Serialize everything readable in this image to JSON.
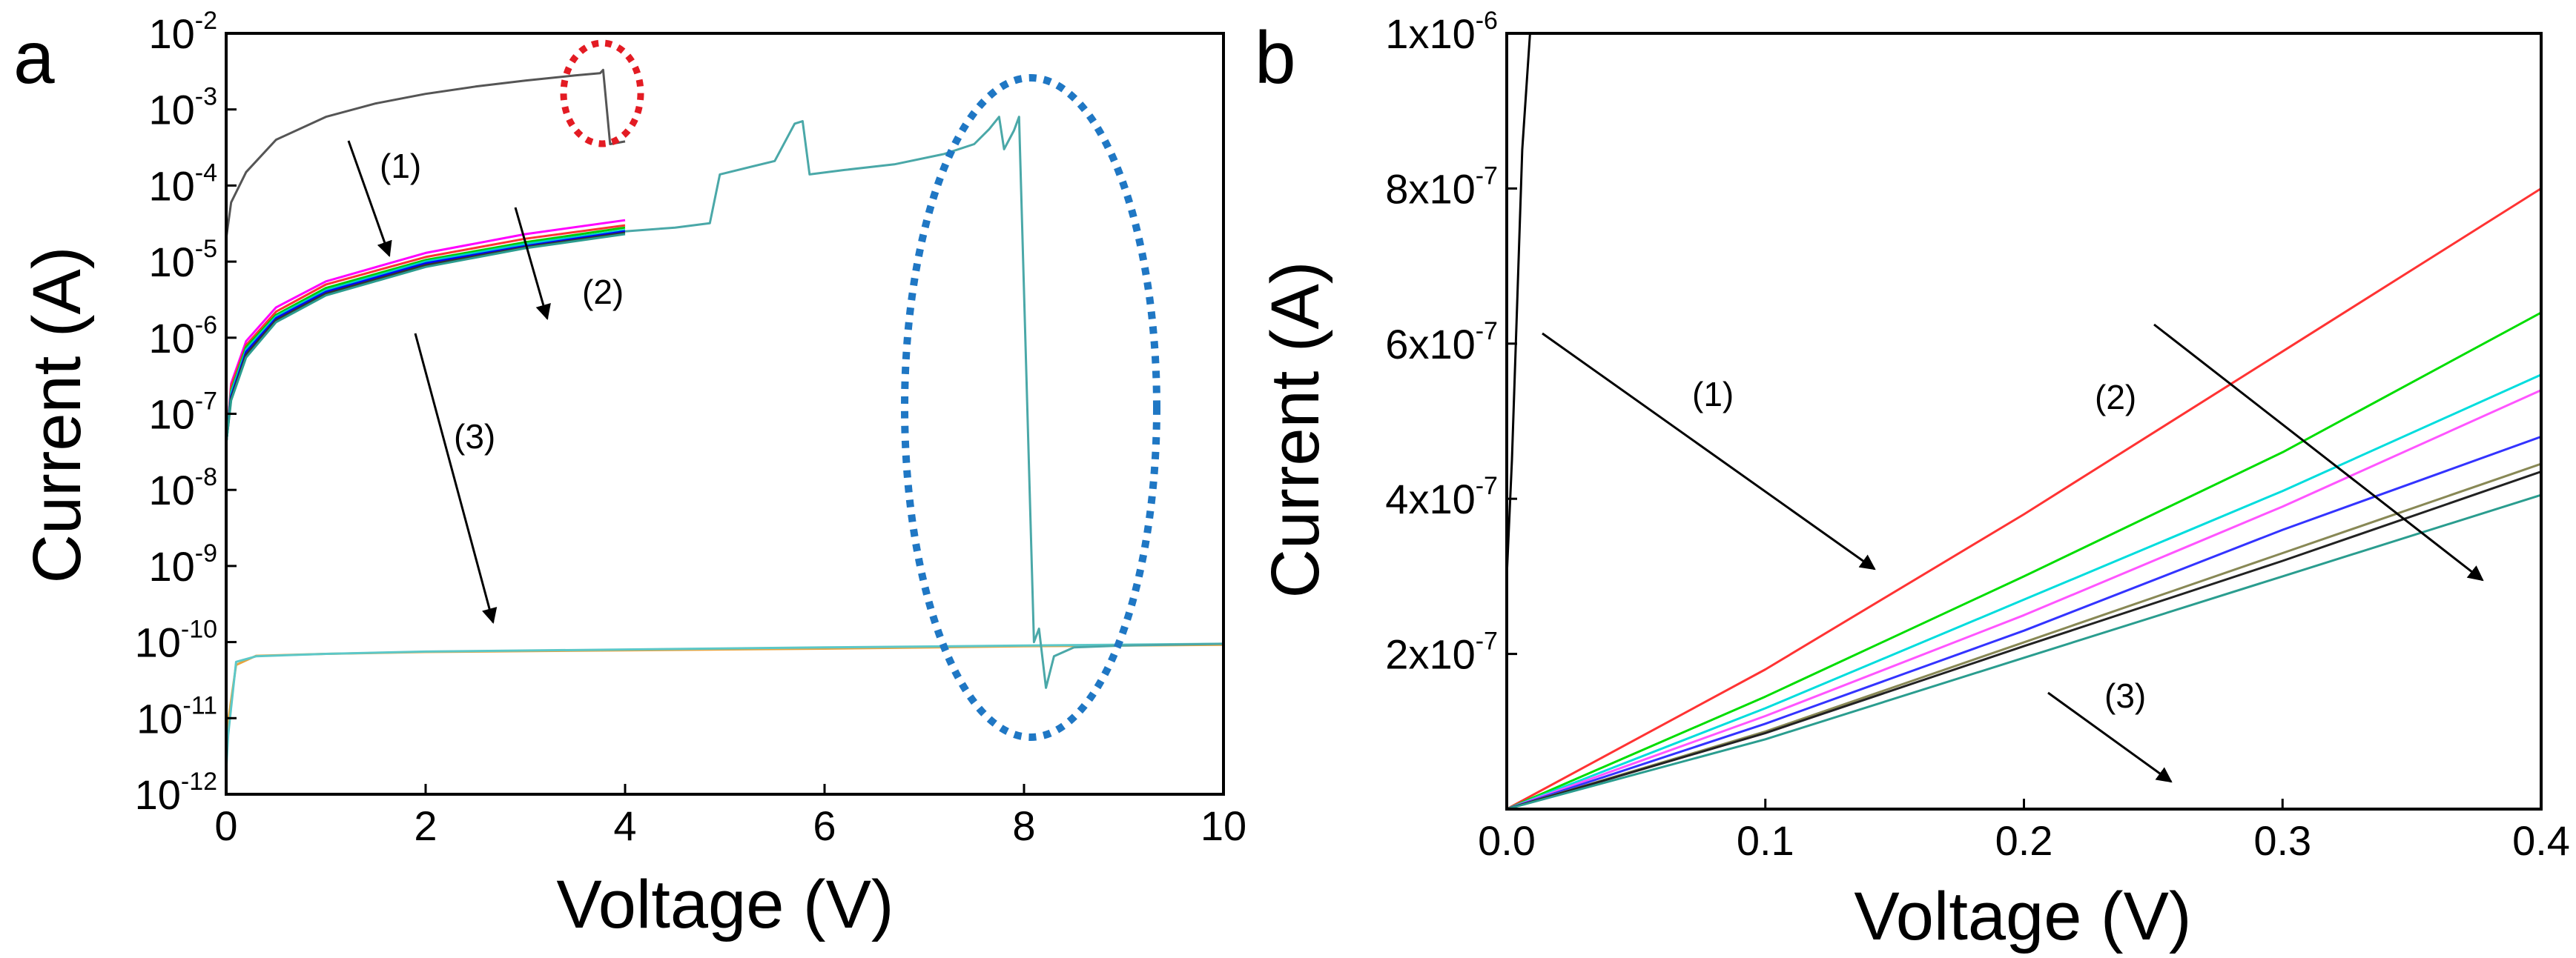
{
  "chart_data": [
    {
      "panel": "a",
      "type": "line",
      "xlabel": "Voltage (V)",
      "ylabel": "Current (A)",
      "xlim": [
        0,
        10
      ],
      "ylim": [
        1e-12,
        0.01
      ],
      "yscale": "log",
      "xticks": [
        "0",
        "2",
        "4",
        "6",
        "8",
        "10"
      ],
      "yticks": [
        {
          "base": "10",
          "exp": "-2",
          "value": 0.01
        },
        {
          "base": "10",
          "exp": "-3",
          "value": 0.001
        },
        {
          "base": "10",
          "exp": "-4",
          "value": 0.0001
        },
        {
          "base": "10",
          "exp": "-5",
          "value": 1e-05
        },
        {
          "base": "10",
          "exp": "-6",
          "value": 1e-06
        },
        {
          "base": "10",
          "exp": "-7",
          "value": 1e-07
        },
        {
          "base": "10",
          "exp": "-8",
          "value": 1e-08
        },
        {
          "base": "10",
          "exp": "-9",
          "value": 1e-09
        },
        {
          "base": "10",
          "exp": "-10",
          "value": 1e-10
        },
        {
          "base": "10",
          "exp": "-11",
          "value": 1e-11
        },
        {
          "base": "10",
          "exp": "-12",
          "value": 1e-12
        }
      ],
      "grid": false,
      "series": [
        {
          "color": "#555555",
          "x": [
            0.0,
            0.05,
            0.2,
            0.5,
            1.0,
            1.5,
            2.0,
            2.5,
            3.0,
            3.5,
            3.75,
            3.78,
            3.85,
            4.0
          ],
          "y": [
            2e-05,
            6e-05,
            0.00015,
            0.0004,
            0.0008,
            0.0012,
            0.0016,
            0.002,
            0.0024,
            0.0028,
            0.003,
            0.0033,
            0.00035,
            0.00038
          ]
        },
        {
          "color": "#ff00ff",
          "x": [
            0.0,
            0.05,
            0.2,
            0.5,
            1.0,
            2.0,
            3.0,
            4.0
          ],
          "y": [
            4e-08,
            2.5e-07,
            9e-07,
            2.5e-06,
            5.5e-06,
            1.3e-05,
            2.3e-05,
            3.5e-05
          ]
        },
        {
          "color": "#ff3333",
          "x": [
            0.0,
            0.05,
            0.2,
            0.5,
            1.0,
            2.0,
            3.0,
            4.0
          ],
          "y": [
            4e-08,
            2.3e-07,
            8e-07,
            2.2e-06,
            5e-06,
            1.15e-05,
            2e-05,
            3e-05
          ]
        },
        {
          "color": "#00cc00",
          "x": [
            0.0,
            0.05,
            0.2,
            0.5,
            1.0,
            2.0,
            3.0,
            4.0
          ],
          "y": [
            4e-08,
            2e-07,
            7.5e-07,
            2e-06,
            4.5e-06,
            1.05e-05,
            1.8e-05,
            2.8e-05
          ]
        },
        {
          "color": "#00cccc",
          "x": [
            0.0,
            0.05,
            0.2,
            0.5,
            1.0,
            2.0,
            3.0,
            4.0
          ],
          "y": [
            4e-08,
            1.9e-07,
            7e-07,
            1.9e-06,
            4.2e-06,
            1e-05,
            1.7e-05,
            2.6e-05
          ]
        },
        {
          "color": "#0000ff",
          "x": [
            0.0,
            0.05,
            0.2,
            0.5,
            1.0,
            2.0,
            3.0,
            4.0
          ],
          "y": [
            4e-08,
            1.7e-07,
            6.5e-07,
            1.8e-06,
            4e-06,
            9.5e-06,
            1.6e-05,
            2.5e-05
          ]
        },
        {
          "color": "#333333",
          "x": [
            0.0,
            0.05,
            0.2,
            0.5,
            1.0,
            2.0,
            3.0,
            4.0
          ],
          "y": [
            4e-08,
            1.6e-07,
            6e-07,
            1.7e-06,
            3.8e-06,
            9e-06,
            1.55e-05,
            2.4e-05
          ]
        },
        {
          "color": "#2a9d8f",
          "x": [
            0.0,
            0.05,
            0.2,
            0.5,
            1.0,
            2.0,
            3.0,
            4.0
          ],
          "y": [
            4e-08,
            1.5e-07,
            5.5e-07,
            1.6e-06,
            3.6e-06,
            8.5e-06,
            1.5e-05,
            2.3e-05
          ]
        },
        {
          "color": "#e8a33d",
          "x": [
            0.0,
            0.1,
            0.3,
            1.0,
            2.0,
            4.0,
            6.0,
            8.0,
            10.0
          ],
          "y": [
            6e-12,
            5e-11,
            6.6e-11,
            7e-11,
            7.4e-11,
            7.8e-11,
            8.2e-11,
            8.8e-11,
            9.2e-11
          ]
        },
        {
          "color": "#5cc8c8",
          "x": [
            0.0,
            0.02,
            0.1,
            0.3,
            1.0,
            2.0,
            4.0,
            6.0,
            8.0,
            10.0
          ],
          "y": [
            2e-12,
            6e-12,
            5.5e-11,
            6.5e-11,
            7e-11,
            7.5e-11,
            8e-11,
            8.5e-11,
            9e-11,
            9.5e-11
          ]
        },
        {
          "color": "#4aa8a8",
          "x": [
            4.0,
            4.5,
            4.85,
            4.95,
            5.5,
            5.7,
            5.78,
            5.85,
            6.2,
            6.7,
            7.2,
            7.5,
            7.65,
            7.75,
            7.8,
            7.9,
            7.95,
            8.1,
            8.15,
            8.22,
            8.3,
            8.5,
            9.0,
            10.0
          ],
          "y": [
            2.5e-05,
            2.8e-05,
            3.2e-05,
            0.00014,
            0.00021,
            0.00065,
            0.0007,
            0.00014,
            0.00016,
            0.00019,
            0.00026,
            0.00035,
            0.00055,
            0.0008,
            0.0003,
            0.00053,
            0.0008,
            1e-10,
            1.5e-10,
            2.5e-11,
            6.5e-11,
            8.5e-11,
            9e-11,
            9.5e-11
          ]
        }
      ],
      "annotations": [
        "(1)",
        "(2)",
        "(3)"
      ]
    },
    {
      "panel": "b",
      "type": "line",
      "xlabel": "Voltage (V)",
      "ylabel": "Current (A)",
      "xlim": [
        0.0,
        0.4
      ],
      "ylim": [
        0,
        1e-06
      ],
      "yscale": "linear",
      "xticks": [
        "0.0",
        "0.1",
        "0.2",
        "0.3",
        "0.4"
      ],
      "yticks": [
        {
          "base": "1x10",
          "exp": "-6",
          "value": 1e-06
        },
        {
          "base": "8x10",
          "exp": "-7",
          "value": 8e-07
        },
        {
          "base": "6x10",
          "exp": "-7",
          "value": 6e-07
        },
        {
          "base": "4x10",
          "exp": "-7",
          "value": 4e-07
        },
        {
          "base": "2x10",
          "exp": "-7",
          "value": 2e-07
        }
      ],
      "grid": false,
      "series": [
        {
          "color": "#000000",
          "x": [
            0.0,
            0.002,
            0.004,
            0.006,
            0.009
          ],
          "y": [
            3e-07,
            4.5e-07,
            6.5e-07,
            8.5e-07,
            1e-06
          ]
        },
        {
          "color": "#ff3333",
          "x": [
            0.0,
            0.1,
            0.2,
            0.3,
            0.4
          ],
          "y": [
            0.0,
            1.8e-07,
            3.8e-07,
            5.9e-07,
            8e-07
          ]
        },
        {
          "color": "#00dd00",
          "x": [
            0.0,
            0.1,
            0.2,
            0.3,
            0.4
          ],
          "y": [
            0.0,
            1.45e-07,
            3e-07,
            4.6e-07,
            6.4e-07
          ]
        },
        {
          "color": "#00dddd",
          "x": [
            0.0,
            0.1,
            0.2,
            0.3,
            0.4
          ],
          "y": [
            0.0,
            1.3e-07,
            2.7e-07,
            4.1e-07,
            5.6e-07
          ]
        },
        {
          "color": "#ff55ff",
          "x": [
            0.0,
            0.1,
            0.2,
            0.3,
            0.4
          ],
          "y": [
            0.0,
            1.2e-07,
            2.5e-07,
            3.9e-07,
            5.4e-07
          ]
        },
        {
          "color": "#3333ff",
          "x": [
            0.0,
            0.1,
            0.2,
            0.3,
            0.4
          ],
          "y": [
            0.0,
            1.1e-07,
            2.3e-07,
            3.6e-07,
            4.8e-07
          ]
        },
        {
          "color": "#888855",
          "x": [
            0.0,
            0.1,
            0.2,
            0.3,
            0.4
          ],
          "y": [
            0.0,
            1e-07,
            2.15e-07,
            3.3e-07,
            4.45e-07
          ]
        },
        {
          "color": "#222222",
          "x": [
            0.0,
            0.1,
            0.2,
            0.3,
            0.4
          ],
          "y": [
            0.0,
            9.8e-08,
            2.1e-07,
            3.2e-07,
            4.35e-07
          ]
        },
        {
          "color": "#2a9d8f",
          "x": [
            0.0,
            0.1,
            0.2,
            0.3,
            0.4
          ],
          "y": [
            0.0,
            9e-08,
            1.95e-07,
            3e-07,
            4.05e-07
          ]
        }
      ],
      "annotations": [
        "(1)",
        "(2)",
        "(3)"
      ]
    }
  ]
}
